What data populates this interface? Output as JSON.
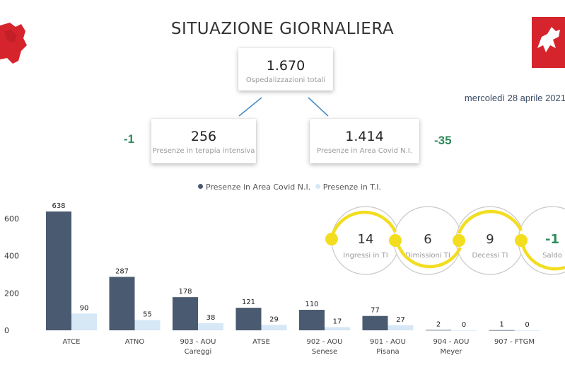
{
  "title": "SITUAZIONE GIORNALIERA",
  "date": "mercoledì 28 aprile 2021",
  "total": {
    "value": "1.670",
    "label": "Ospedalizzazioni totali"
  },
  "ti": {
    "value": "256",
    "label": "Presenze in terapia intensiva",
    "delta": "-1"
  },
  "area": {
    "value": "1.414",
    "label": "Presenze in Area Covid N.I.",
    "delta": "-35"
  },
  "flow": [
    {
      "value": "14",
      "label": "Ingressi in TI"
    },
    {
      "value": "6",
      "label": "Dimissioni TI"
    },
    {
      "value": "9",
      "label": "Decessi TI"
    },
    {
      "value": "-1",
      "label": "Saldo"
    }
  ],
  "colors": {
    "area": "#4a5a70",
    "ti": "#d6e7f6",
    "accent": "#f3dd1f",
    "delta": "#2f8a5c",
    "region": "#d6242c"
  },
  "icons": {
    "left_logo": "tuscany-map-icon",
    "right_logo": "tuscany-region-emblem-icon"
  },
  "chart_data": {
    "type": "bar",
    "categories": [
      "ATCE",
      "ATNO",
      "903 - AOU\nCareggi",
      "ATSE",
      "902 - AOU\nSenese",
      "901 - AOU\nPisana",
      "904 - AOU\nMeyer",
      "907 - FTGM"
    ],
    "series": [
      {
        "name": "Presenze in Area Covid N.I.",
        "values": [
          638,
          287,
          178,
          121,
          110,
          77,
          2,
          1
        ]
      },
      {
        "name": "Presenze in T.I.",
        "values": [
          90,
          55,
          38,
          29,
          17,
          27,
          0,
          0
        ]
      }
    ],
    "yticks": [
      "0",
      "200",
      "400",
      "600"
    ],
    "ylim": [
      0,
      700
    ],
    "legend": "top-center",
    "grid": false
  }
}
